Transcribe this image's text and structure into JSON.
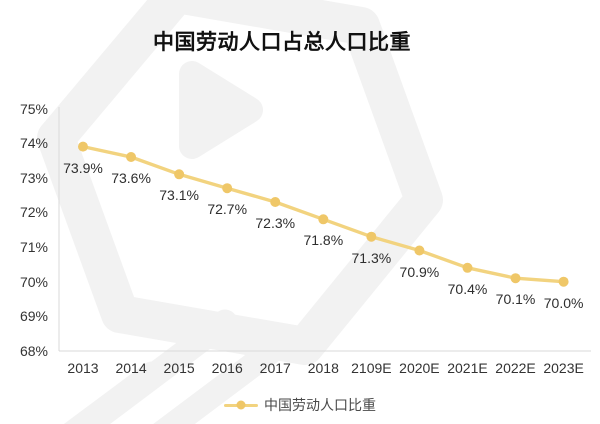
{
  "title": "中国劳动人口占总人口比重",
  "legend": {
    "items": [
      {
        "label": "中国劳动人口比重"
      }
    ]
  },
  "chart_data": {
    "type": "line",
    "title": "中国劳动人口占总人口比重",
    "categories": [
      "2013",
      "2014",
      "2015",
      "2016",
      "2017",
      "2018",
      "2109E",
      "2020E",
      "2021E",
      "2022E",
      "2023E"
    ],
    "series": [
      {
        "name": "中国劳动人口比重",
        "values": [
          73.9,
          73.6,
          73.1,
          72.7,
          72.3,
          71.8,
          71.3,
          70.9,
          70.4,
          70.1,
          70.0
        ]
      }
    ],
    "point_labels": [
      "73.9%",
      "73.6%",
      "73.1%",
      "72.7%",
      "72.3%",
      "71.8%",
      "71.3%",
      "70.9%",
      "70.4%",
      "70.1%",
      "70.0%"
    ],
    "y_tick_labels": [
      "75%",
      "74%",
      "73%",
      "72%",
      "71%",
      "70%",
      "69%",
      "68%"
    ],
    "ylim": [
      68,
      75
    ],
    "xlabel": "",
    "ylabel": "",
    "grid": false,
    "legend_position": "bottom"
  },
  "colors": {
    "line": "#F2D37F",
    "point": "#EFC768",
    "axis": "#D9D9D9",
    "watermark": "#F2F2F2",
    "background": "#FFFFFF"
  }
}
